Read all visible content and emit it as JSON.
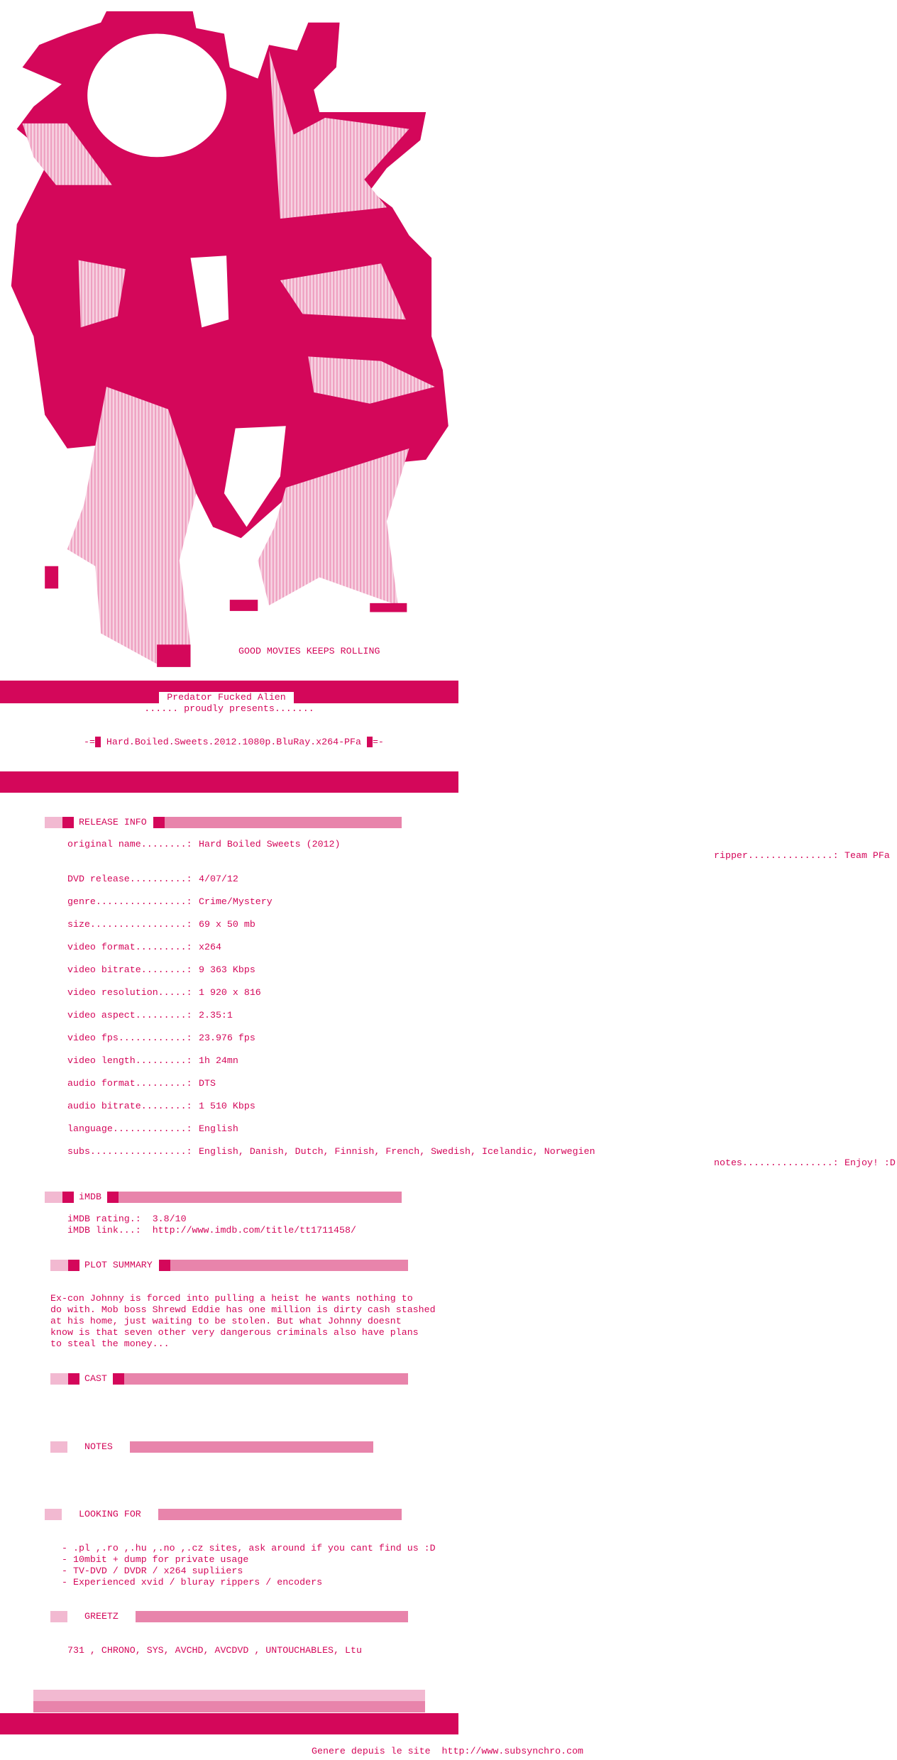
{
  "logo": {
    "tagline": "GOOD MOVIES KEEPS ROLLING"
  },
  "banner": {
    "group": "Predator Fucked Alien",
    "presents": "...... proudly presents.......",
    "release": "-=█ Hard.Boiled.Sweets.2012.1080p.BluRay.x264-PFa █=-"
  },
  "release_info": {
    "heading": "RELEASE INFO",
    "first": {
      "label": "original name........:",
      "value": "Hard Boiled Sweets (2012)"
    },
    "ripper": {
      "label": "ripper...............:",
      "value": "Team PFa"
    },
    "rows": [
      {
        "label": "DVD release..........:",
        "value": "4/07/12"
      },
      {
        "label": "genre................:",
        "value": "Crime/Mystery"
      },
      {
        "label": "size.................:",
        "value": "69 x 50 mb"
      },
      {
        "label": "video format.........:",
        "value": "x264"
      },
      {
        "label": "video bitrate........:",
        "value": "9 363 Kbps"
      },
      {
        "label": "video resolution.....:",
        "value": "1 920 x 816"
      },
      {
        "label": "video aspect.........:",
        "value": "2.35:1"
      },
      {
        "label": "video fps............:",
        "value": "23.976 fps"
      },
      {
        "label": "video length.........:",
        "value": "1h 24mn"
      },
      {
        "label": "audio format.........:",
        "value": "DTS"
      },
      {
        "label": "audio bitrate........:",
        "value": "1 510 Kbps"
      },
      {
        "label": "language.............:",
        "value": "English"
      },
      {
        "label": "subs.................:",
        "value": "English, Danish, Dutch, Finnish, French, Swedish, Icelandic, Norwegien"
      }
    ],
    "notes": {
      "label": "notes................:",
      "value": "Enjoy! :D"
    }
  },
  "imdb": {
    "heading": "iMDB",
    "rating": "iMDB rating.:  3.8/10",
    "link": "iMDB link...:  http://www.imdb.com/title/tt1711458/"
  },
  "plot": {
    "heading": "PLOT SUMMARY",
    "lines": [
      "Ex-con Johnny is forced into pulling a heist he wants nothing to",
      "do with. Mob boss Shrewd Eddie has one million is dirty cash stashed",
      "at his home, just waiting to be stolen. But what Johnny doesnt",
      "know is that seven other very dangerous criminals also have plans",
      "to steal the money..."
    ]
  },
  "cast": {
    "heading": "CAST"
  },
  "notes": {
    "heading": "NOTES"
  },
  "looking_for": {
    "heading": "LOOKING FOR",
    "items": [
      "- .pl ,.ro ,.hu ,.no ,.cz sites, ask around if you cant find us :D",
      "- 10mbit + dump for private usage",
      "- TV-DVD / DVDR / x264 supliiers",
      "- Experienced xvid / bluray rippers / encoders"
    ]
  },
  "greetz": {
    "heading": "GREETZ",
    "text": "731 , CHRONO, SYS, AVCHD, AVCDVD , UNTOUCHABLES, Ltu"
  },
  "footer": {
    "prefix": "Genere depuis le site",
    "url": "http://www.subsynchro.com"
  }
}
